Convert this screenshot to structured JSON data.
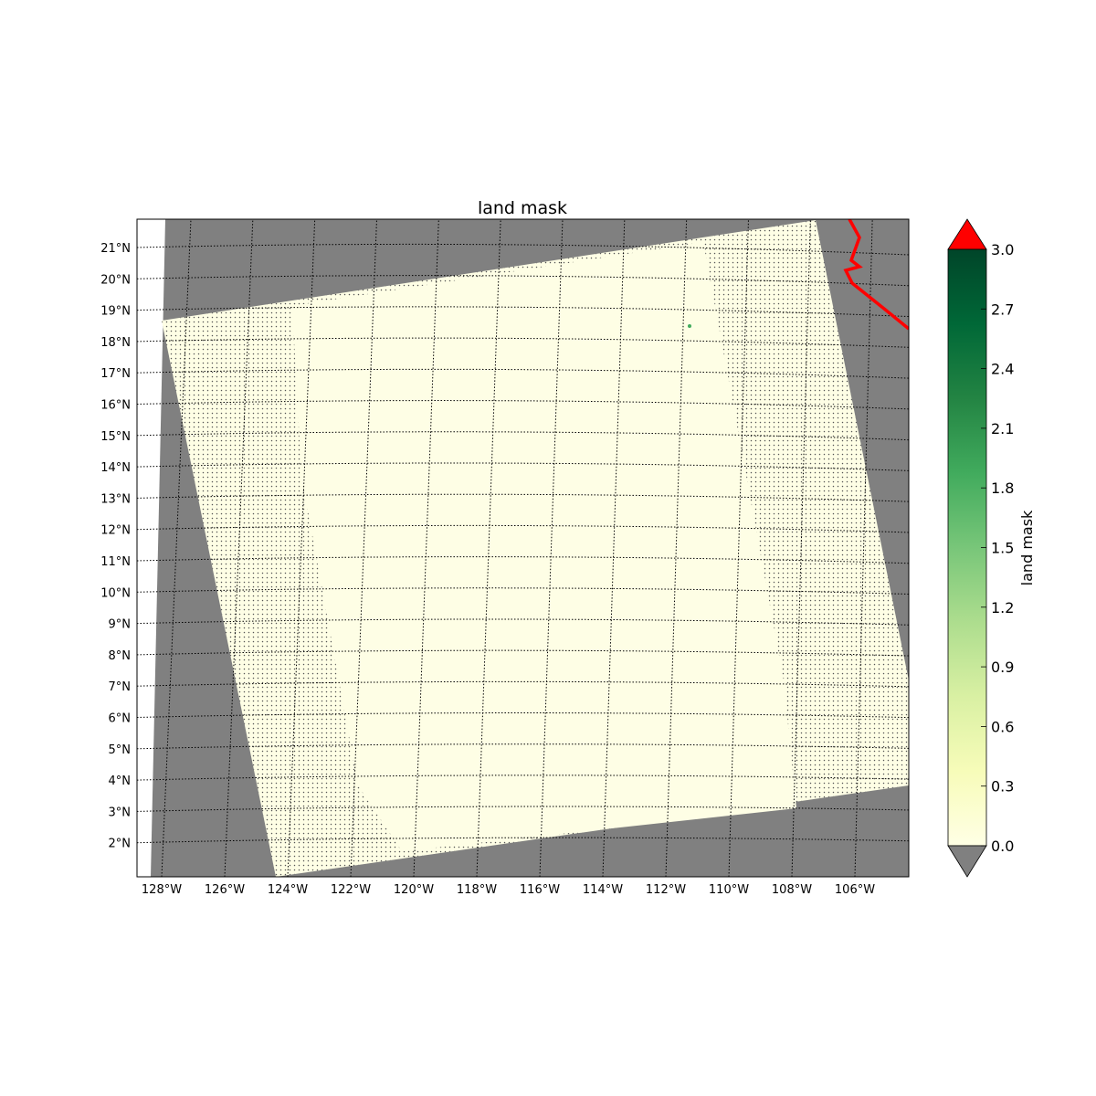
{
  "title": "land mask",
  "colorbar": {
    "label": "land mask",
    "ticks": [
      "0.0",
      "0.3",
      "0.6",
      "0.9",
      "1.2",
      "1.5",
      "1.8",
      "2.1",
      "2.4",
      "2.7",
      "3.0"
    ],
    "min": 0.0,
    "max": 3.0,
    "colors": [
      "#ffffe5",
      "#f7fcb9",
      "#d9f0a3",
      "#addd8e",
      "#78c679",
      "#41ab5d",
      "#238443",
      "#006837",
      "#004529"
    ],
    "over_color": "#ff0000",
    "under_color": "#808080"
  },
  "map": {
    "lon_labels": [
      "128°W",
      "126°W",
      "124°W",
      "122°W",
      "120°W",
      "118°W",
      "116°W",
      "114°W",
      "112°W",
      "110°W",
      "108°W",
      "106°W"
    ],
    "lat_labels": [
      "21°N",
      "20°N",
      "19°N",
      "18°N",
      "17°N",
      "16°N",
      "15°N",
      "14°N",
      "13°N",
      "12°N",
      "11°N",
      "10°N",
      "9°N",
      "8°N",
      "7°N",
      "6°N",
      "5°N",
      "4°N",
      "3°N",
      "2°N"
    ],
    "background_color": "#808080",
    "swath_color": "#fefee5",
    "coastline_color": "#ff0000"
  }
}
